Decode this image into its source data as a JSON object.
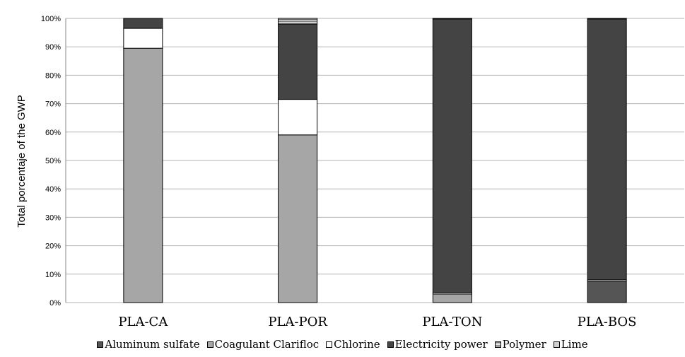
{
  "chart_data": {
    "type": "bar",
    "stacked": true,
    "percent": true,
    "title": "",
    "xlabel": "",
    "ylabel": "Total porcentaje of the GWP",
    "ylim": [
      0,
      100
    ],
    "yticks": [
      "0%",
      "10%",
      "20%",
      "30%",
      "40%",
      "50%",
      "60%",
      "70%",
      "80%",
      "90%",
      "100%"
    ],
    "grid": true,
    "legend_position": "bottom",
    "categories": [
      "PLA-CA",
      "PLA-POR",
      "PLA-TON",
      "PLA-BOS"
    ],
    "series": [
      {
        "name": "Aluminum sulfate",
        "color": "#555555",
        "pattern": "solid",
        "values": [
          0,
          0,
          0,
          7.5
        ]
      },
      {
        "name": "Coagulant Clarifloc",
        "color": "#a6a6a6",
        "pattern": "solid",
        "values": [
          89.5,
          59,
          3,
          0
        ]
      },
      {
        "name": "Chlorine",
        "color": "#ffffff",
        "pattern": "solid",
        "values": [
          7,
          12.5,
          0.5,
          0.5
        ]
      },
      {
        "name": "Electricity power",
        "color": "#444444",
        "pattern": "solid",
        "values": [
          3.5,
          26.5,
          96.3,
          91.8
        ]
      },
      {
        "name": "Polymer",
        "color": "#aaaaaa",
        "pattern": "hatched",
        "values": [
          0,
          1.5,
          0.1,
          0.1
        ]
      },
      {
        "name": "Lime",
        "color": "#d0d0d0",
        "pattern": "solid",
        "values": [
          0,
          0.5,
          0.1,
          0.1
        ]
      }
    ]
  }
}
